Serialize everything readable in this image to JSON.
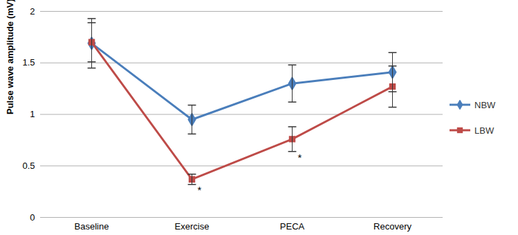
{
  "chart_data": {
    "type": "line",
    "categories": [
      "Baseline",
      "Exercise",
      "PECA",
      "Recovery"
    ],
    "y_label": "Pulse wave amplitude (mV)",
    "ylim": [
      0,
      2
    ],
    "yticks": [
      0,
      0.5,
      1,
      1.5,
      2
    ],
    "grid": true,
    "legend": "right",
    "series": [
      {
        "name": "NBW",
        "color": "#4a7ebb",
        "marker": "diamond",
        "values": [
          1.69,
          0.95,
          1.3,
          1.41
        ],
        "errors": [
          0.24,
          0.14,
          0.18,
          0.19
        ]
      },
      {
        "name": "LBW",
        "color": "#be4b48",
        "marker": "square",
        "values": [
          1.7,
          0.37,
          0.76,
          1.27
        ],
        "errors": [
          0.19,
          0.05,
          0.12,
          0.2
        ]
      }
    ],
    "annotations": [
      {
        "text": "*",
        "series": "LBW",
        "category": "Exercise"
      },
      {
        "text": "*",
        "series": "LBW",
        "category": "PECA"
      }
    ]
  }
}
